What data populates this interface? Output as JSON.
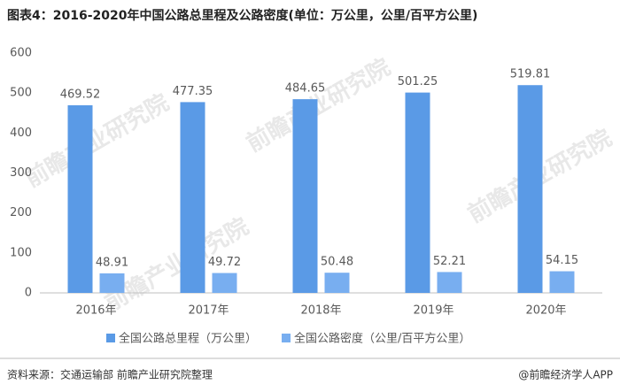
{
  "chart_data": {
    "type": "bar",
    "title": "图表4：2016-2020年中国公路总里程及公路密度(单位：万公里，公里/百平方公里)",
    "categories": [
      "2016年",
      "2017年",
      "2018年",
      "2019年",
      "2020年"
    ],
    "series": [
      {
        "name": "全国公路总里程（万公里）",
        "color": "#5a9ae6",
        "values": [
          469.52,
          477.35,
          484.65,
          501.25,
          519.81
        ]
      },
      {
        "name": "全国公路密度（公里/百平方公里）",
        "color": "#78aef0",
        "values": [
          48.91,
          49.72,
          50.48,
          52.21,
          54.15
        ]
      }
    ],
    "ylim": [
      0,
      600
    ],
    "yticks": [
      0,
      100,
      200,
      300,
      400,
      500,
      600
    ],
    "grid": false,
    "legend": "bottom",
    "source": "资料来源：交通运输部 前瞻产业研究院整理",
    "credit": "@前瞻经济学人APP",
    "watermark": "前瞻产业研究院"
  }
}
